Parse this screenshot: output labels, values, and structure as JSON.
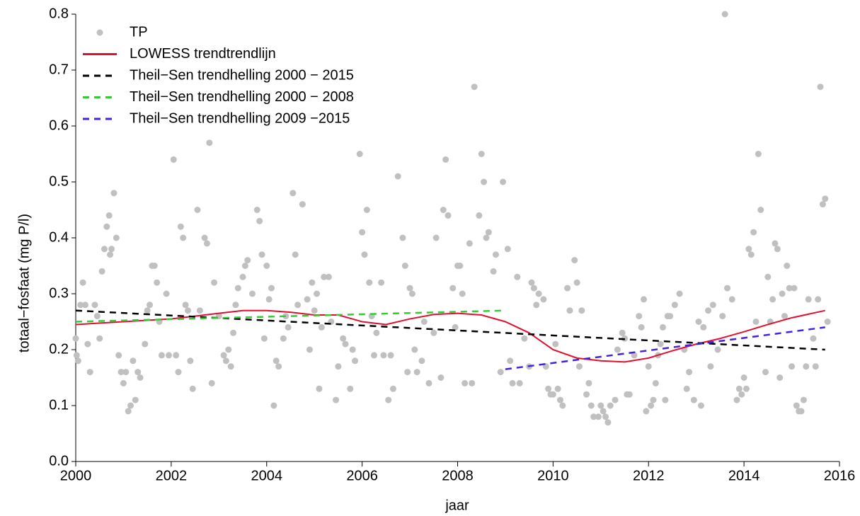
{
  "chart_data": {
    "type": "scatter",
    "xlabel": "jaar",
    "ylabel": "totaal−fosfaat (mg P/l)",
    "xlim": [
      2000,
      2016
    ],
    "xticks": [
      2000,
      2002,
      2004,
      2006,
      2008,
      2010,
      2012,
      2014,
      2016
    ],
    "ylim": [
      0,
      0.8
    ],
    "yticks": [
      {
        "value": 0,
        "label": "0.0"
      },
      0.1,
      0.2,
      0.3,
      0.4,
      0.5,
      0.6,
      0.7,
      0.8
    ],
    "legend": "upper left",
    "series": [
      {
        "name": "TP",
        "color": "#c0c0c0",
        "style": "points",
        "x": [
          2000.0,
          2000.02,
          2000.05,
          2000.1,
          2000.15,
          2000.2,
          2000.25,
          2000.3,
          2000.4,
          2000.45,
          2000.5,
          2000.55,
          2000.6,
          2000.65,
          2000.7,
          2000.72,
          2000.75,
          2000.8,
          2000.85,
          2000.9,
          2000.95,
          2001.0,
          2001.05,
          2001.1,
          2001.15,
          2001.2,
          2001.25,
          2001.3,
          2001.35,
          2001.45,
          2001.5,
          2001.55,
          2001.6,
          2001.65,
          2001.7,
          2001.75,
          2001.8,
          2001.9,
          2001.95,
          2002.05,
          2002.1,
          2002.15,
          2002.2,
          2002.25,
          2002.3,
          2002.35,
          2002.4,
          2002.45,
          2002.55,
          2002.6,
          2002.7,
          2002.75,
          2002.8,
          2002.85,
          2002.9,
          2003.0,
          2003.1,
          2003.15,
          2003.2,
          2003.25,
          2003.3,
          2003.35,
          2003.4,
          2003.5,
          2003.55,
          2003.6,
          2003.7,
          2003.8,
          2003.85,
          2003.9,
          2003.95,
          2004.0,
          2004.05,
          2004.1,
          2004.15,
          2004.2,
          2004.25,
          2004.35,
          2004.4,
          2004.45,
          2004.55,
          2004.6,
          2004.65,
          2004.75,
          2004.85,
          2004.9,
          2004.95,
          2005.0,
          2005.05,
          2005.1,
          2005.15,
          2005.2,
          2005.3,
          2005.35,
          2005.45,
          2005.5,
          2005.6,
          2005.65,
          2005.75,
          2005.8,
          2005.85,
          2005.95,
          2006.0,
          2006.05,
          2006.1,
          2006.15,
          2006.2,
          2006.25,
          2006.3,
          2006.4,
          2006.45,
          2006.55,
          2006.6,
          2006.65,
          2006.75,
          2006.85,
          2006.9,
          2006.95,
          2007.0,
          2007.05,
          2007.1,
          2007.15,
          2007.25,
          2007.3,
          2007.4,
          2007.5,
          2007.55,
          2007.65,
          2007.7,
          2007.75,
          2007.8,
          2007.9,
          2007.95,
          2008.0,
          2008.05,
          2008.1,
          2008.15,
          2008.25,
          2008.3,
          2008.35,
          2008.45,
          2008.5,
          2008.55,
          2008.6,
          2008.65,
          2008.75,
          2008.8,
          2008.9,
          2008.95,
          2009.05,
          2009.1,
          2009.15,
          2009.25,
          2009.3,
          2009.4,
          2009.5,
          2009.55,
          2009.6,
          2009.65,
          2009.7,
          2009.8,
          2009.85,
          2009.9,
          2009.95,
          2010.0,
          2010.05,
          2010.1,
          2010.15,
          2010.2,
          2010.3,
          2010.35,
          2010.45,
          2010.5,
          2010.55,
          2010.6,
          2010.7,
          2010.75,
          2010.8,
          2010.85,
          2010.95,
          2011.0,
          2011.05,
          2011.1,
          2011.15,
          2011.2,
          2011.3,
          2011.35,
          2011.45,
          2011.5,
          2011.55,
          2011.6,
          2011.7,
          2011.8,
          2011.85,
          2011.9,
          2011.95,
          2012.0,
          2012.05,
          2012.1,
          2012.15,
          2012.2,
          2012.25,
          2012.3,
          2012.35,
          2012.4,
          2012.45,
          2012.55,
          2012.65,
          2012.75,
          2012.8,
          2012.85,
          2012.95,
          2013.05,
          2013.1,
          2013.15,
          2013.25,
          2013.3,
          2013.35,
          2013.45,
          2013.55,
          2013.6,
          2013.65,
          2013.75,
          2013.85,
          2013.9,
          2013.95,
          2014.0,
          2014.05,
          2014.1,
          2014.15,
          2014.2,
          2014.25,
          2014.3,
          2014.35,
          2014.45,
          2014.5,
          2014.55,
          2014.6,
          2014.65,
          2014.7,
          2014.75,
          2014.8,
          2014.85,
          2014.9,
          2014.95,
          2015.0,
          2015.05,
          2015.1,
          2015.15,
          2015.2,
          2015.25,
          2015.3,
          2015.35,
          2015.45,
          2015.5,
          2015.55,
          2015.6,
          2015.65,
          2015.7,
          2015.75
        ],
        "values": [
          0.22,
          0.19,
          0.18,
          0.28,
          0.32,
          0.28,
          0.21,
          0.16,
          0.28,
          0.26,
          0.22,
          0.34,
          0.38,
          0.42,
          0.44,
          0.37,
          0.38,
          0.48,
          0.4,
          0.19,
          0.16,
          0.14,
          0.16,
          0.09,
          0.1,
          0.18,
          0.11,
          0.16,
          0.15,
          0.21,
          0.27,
          0.28,
          0.35,
          0.35,
          0.32,
          0.25,
          0.19,
          0.3,
          0.19,
          0.54,
          0.19,
          0.16,
          0.42,
          0.4,
          0.28,
          0.27,
          0.18,
          0.13,
          0.45,
          0.27,
          0.4,
          0.39,
          0.57,
          0.14,
          0.32,
          0.26,
          0.19,
          0.18,
          0.2,
          0.17,
          0.23,
          0.28,
          0.31,
          0.33,
          0.35,
          0.36,
          0.3,
          0.45,
          0.43,
          0.37,
          0.22,
          0.35,
          0.29,
          0.31,
          0.1,
          0.18,
          0.17,
          0.22,
          0.26,
          0.24,
          0.48,
          0.37,
          0.28,
          0.46,
          0.29,
          0.2,
          0.32,
          0.27,
          0.3,
          0.13,
          0.24,
          0.33,
          0.33,
          0.25,
          0.11,
          0.17,
          0.22,
          0.21,
          0.13,
          0.2,
          0.18,
          0.55,
          0.41,
          0.37,
          0.45,
          0.32,
          0.26,
          0.19,
          0.23,
          0.32,
          0.19,
          0.11,
          0.19,
          0.13,
          0.51,
          0.4,
          0.35,
          0.16,
          0.31,
          0.3,
          0.2,
          0.16,
          0.18,
          0.25,
          0.14,
          0.23,
          0.4,
          0.15,
          0.45,
          0.54,
          0.44,
          0.31,
          0.24,
          0.35,
          0.35,
          0.3,
          0.14,
          0.39,
          0.14,
          0.67,
          0.44,
          0.55,
          0.5,
          0.4,
          0.41,
          0.34,
          0.37,
          0.16,
          0.5,
          0.38,
          0.18,
          0.14,
          0.33,
          0.14,
          0.22,
          0.17,
          0.32,
          0.31,
          0.28,
          0.3,
          0.29,
          0.17,
          0.13,
          0.12,
          0.12,
          0.21,
          0.13,
          0.11,
          0.1,
          0.31,
          0.27,
          0.36,
          0.32,
          0.17,
          0.27,
          0.12,
          0.14,
          0.1,
          0.08,
          0.08,
          0.1,
          0.09,
          0.08,
          0.07,
          0.1,
          0.11,
          0.2,
          0.23,
          0.22,
          0.12,
          0.12,
          0.19,
          0.26,
          0.24,
          0.29,
          0.09,
          0.17,
          0.1,
          0.11,
          0.14,
          0.19,
          0.21,
          0.24,
          0.11,
          0.26,
          0.26,
          0.28,
          0.3,
          0.2,
          0.13,
          0.16,
          0.11,
          0.25,
          0.1,
          0.24,
          0.27,
          0.17,
          0.28,
          0.2,
          0.26,
          0.8,
          0.31,
          0.29,
          0.11,
          0.13,
          0.12,
          0.15,
          0.13,
          0.38,
          0.37,
          0.41,
          0.25,
          0.55,
          0.45,
          0.16,
          0.33,
          0.25,
          0.29,
          0.39,
          0.38,
          0.15,
          0.3,
          0.26,
          0.35,
          0.31,
          0.17,
          0.31,
          0.1,
          0.09,
          0.09,
          0.11,
          0.17,
          0.29,
          0.22,
          0.17,
          0.29,
          0.67,
          0.46,
          0.47,
          0.25
        ]
      },
      {
        "name": "LOWESS trendtrendlijn",
        "color": "#e0102f",
        "style": "solid",
        "x": [
          2000,
          2001,
          2002,
          2003,
          2003.5,
          2004,
          2004.5,
          2005,
          2005.5,
          2006,
          2006.5,
          2007,
          2007.5,
          2008,
          2008.5,
          2009,
          2009.5,
          2010,
          2010.5,
          2011,
          2011.5,
          2012,
          2012.5,
          2013,
          2013.5,
          2014,
          2014.5,
          2015,
          2015.7
        ],
        "values": [
          0.245,
          0.25,
          0.255,
          0.265,
          0.27,
          0.27,
          0.267,
          0.262,
          0.262,
          0.25,
          0.245,
          0.255,
          0.263,
          0.265,
          0.262,
          0.25,
          0.23,
          0.2,
          0.185,
          0.18,
          0.178,
          0.185,
          0.198,
          0.21,
          0.22,
          0.232,
          0.245,
          0.257,
          0.27
        ]
      },
      {
        "name": "Theil−Sen trendhelling 2000 − 2015",
        "color": "#000000",
        "style": "dashed",
        "x": [
          2000,
          2015.7
        ],
        "values": [
          0.27,
          0.2
        ]
      },
      {
        "name": "Theil−Sen trendhelling 2000 − 2008",
        "color": "#33cc33",
        "style": "dashed",
        "x": [
          2000,
          2009
        ],
        "values": [
          0.25,
          0.27
        ]
      },
      {
        "name": "Theil−Sen trendhelling 2009 −2015",
        "color": "#4422dd",
        "style": "dashed",
        "x": [
          2009,
          2015.7
        ],
        "values": [
          0.165,
          0.24
        ]
      }
    ]
  }
}
